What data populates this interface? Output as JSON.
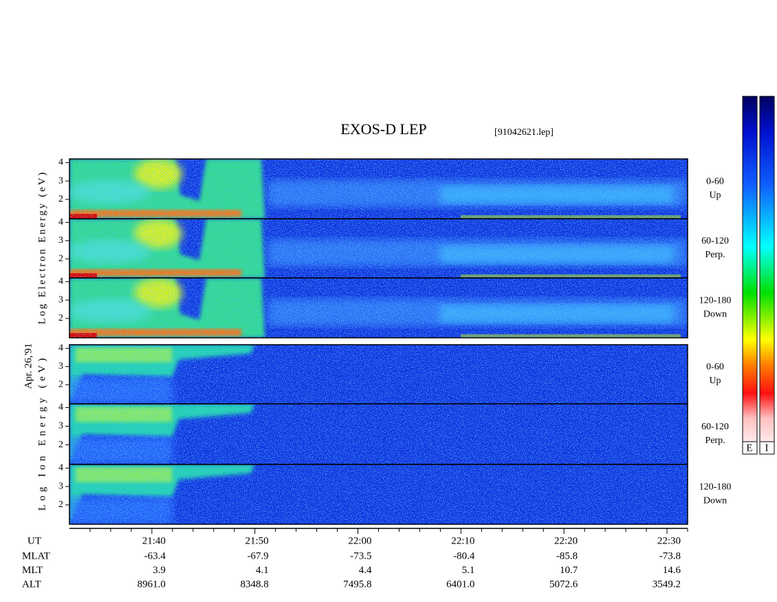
{
  "chart_data": {
    "type": "spectrogram",
    "title": "EXOS-D LEP",
    "subtitle": "[91042621.lep]",
    "date_label": "Apr. 26,'91",
    "xlim": [
      1292,
      1352
    ],
    "xticks": [
      {
        "value": 1300,
        "label": "21:40"
      },
      {
        "value": 1310,
        "label": "21:50"
      },
      {
        "value": 1320,
        "label": "22:00"
      },
      {
        "value": 1330,
        "label": "22:10"
      },
      {
        "value": 1340,
        "label": "22:20"
      },
      {
        "value": 1350,
        "label": "22:30"
      }
    ],
    "xminor": [
      1294,
      1296,
      1298,
      1302,
      1304,
      1306,
      1308,
      1312,
      1314,
      1316,
      1318,
      1322,
      1324,
      1326,
      1328,
      1332,
      1334,
      1336,
      1338,
      1342,
      1344,
      1346,
      1348,
      1352
    ],
    "x_row_label": "UT",
    "ephemeris": [
      {
        "label": "MLAT",
        "values": [
          "-63.4",
          "-67.9",
          "-73.5",
          "-80.4",
          "-85.8",
          "-73.8"
        ]
      },
      {
        "label": "MLT",
        "values": [
          "3.9",
          "4.1",
          "4.4",
          "5.1",
          "10.7",
          "14.6"
        ]
      },
      {
        "label": "ALT",
        "values": [
          "8961.0",
          "8348.8",
          "7495.8",
          "6401.0",
          "5072.6",
          "3549.2"
        ]
      }
    ],
    "groups": [
      {
        "ylabel": "Log Electron Energy (eV)",
        "panels": [
          {
            "pitch": "0-60",
            "direction": "Up",
            "ylim": [
              0.95,
              4.2
            ],
            "yticks": [
              2,
              3,
              4
            ]
          },
          {
            "pitch": "60-120",
            "direction": "Perp.",
            "ylim": [
              0.95,
              4.2
            ],
            "yticks": [
              2,
              3,
              4
            ]
          },
          {
            "pitch": "120-180",
            "direction": "Down",
            "ylim": [
              0.95,
              4.2
            ],
            "yticks": [
              2,
              3,
              4
            ]
          }
        ]
      },
      {
        "ylabel": "Log Ion Energy (eV)",
        "panels": [
          {
            "pitch": "0-60",
            "direction": "Up",
            "ylim": [
              0.95,
              4.2
            ],
            "yticks": [
              2,
              3,
              4
            ]
          },
          {
            "pitch": "60-120",
            "direction": "Perp.",
            "ylim": [
              0.95,
              4.2
            ],
            "yticks": [
              2,
              3,
              4
            ]
          },
          {
            "pitch": "120-180",
            "direction": "Down",
            "ylim": [
              0.95,
              4.2
            ],
            "yticks": [
              2,
              3,
              4
            ]
          }
        ]
      }
    ],
    "colorbar_labels": [
      "E",
      "I"
    ]
  }
}
